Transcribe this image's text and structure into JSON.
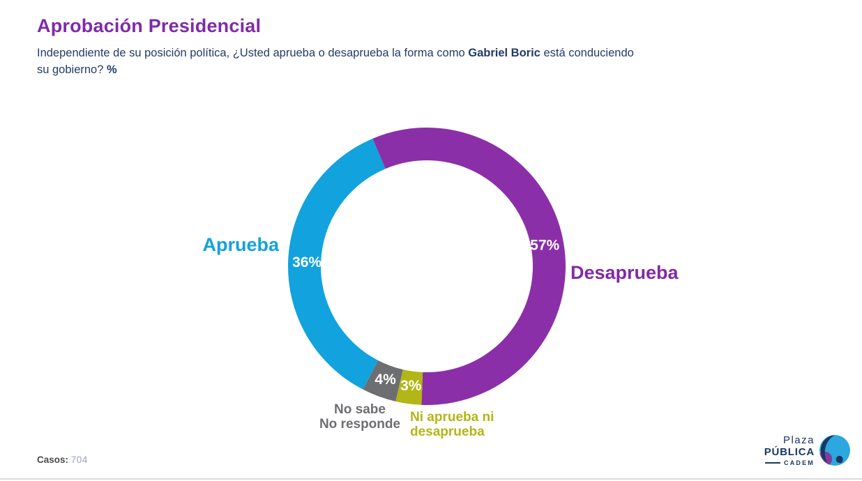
{
  "header": {
    "title": "Aprobación Presidencial",
    "subtitle_part1": "Independiente de su posición política, ¿Usted aprueba o desaprueba la forma como ",
    "subtitle_bold_name": "Gabriel Boric",
    "subtitle_part2": " está conduciendo",
    "subtitle_part3": "su gobierno? ",
    "subtitle_bold_pct": "%"
  },
  "chart_data": {
    "type": "pie",
    "subtype": "donut",
    "title": "Aprobación Presidencial",
    "unit": "%",
    "start_angle_deg": -23,
    "direction": "clockwise",
    "segments": [
      {
        "label": "Desaprueba",
        "value": 57,
        "color": "#8B2FA8"
      },
      {
        "label": "Ni aprueba ni desaprueba",
        "value": 3,
        "color": "#B2B616"
      },
      {
        "label": "No sabe / No responde",
        "value": 4,
        "color": "#6D6E71"
      },
      {
        "label": "Aprueba",
        "value": 36,
        "color": "#12A2DE"
      }
    ]
  },
  "callouts": {
    "no_sabe": [
      "No sabe",
      "No responde"
    ],
    "ni_aprueba": [
      "Ni aprueba ni",
      "desaprueba"
    ]
  },
  "footer": {
    "casos_label": "Casos",
    "casos_separator": ":",
    "casos_value": "704"
  },
  "logo": {
    "line1": "Plaza",
    "line2": "PÚBLICA",
    "line3": "CADEM"
  },
  "colors": {
    "title_purple": "#7E2BA8",
    "subtitle_navy": "#243A68",
    "approve_blue": "#12A2DE",
    "disapprove_purple": "#8B2FA8",
    "neutral_gray": "#6D6E71",
    "neither_olive": "#B2B616"
  }
}
